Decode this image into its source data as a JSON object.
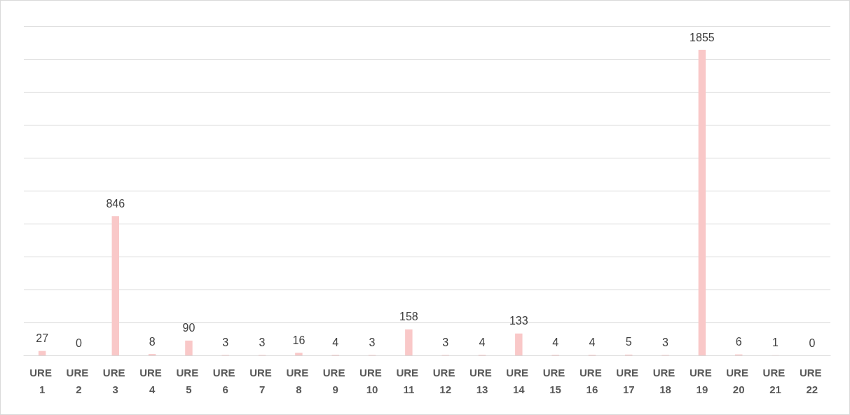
{
  "chart_data": {
    "type": "bar",
    "categories": [
      "URE 1",
      "URE 2",
      "URE 3",
      "URE 4",
      "URE 5",
      "URE 6",
      "URE 7",
      "URE 8",
      "URE 9",
      "URE 10",
      "URE 11",
      "URE 12",
      "URE 13",
      "URE 14",
      "URE 15",
      "URE 16",
      "URE 17",
      "URE 18",
      "URE 19",
      "URE 20",
      "URE 21",
      "URE 22"
    ],
    "values": [
      27,
      0,
      846,
      8,
      90,
      3,
      3,
      16,
      4,
      3,
      158,
      3,
      4,
      133,
      4,
      4,
      5,
      3,
      1855,
      6,
      1,
      0
    ],
    "color": "#f9c8c8",
    "ylim": [
      0,
      2000
    ],
    "yticks": [
      {
        "value": 0,
        "label": null
      },
      {
        "value": 200,
        "label": null
      },
      {
        "value": 400,
        "label": null
      },
      {
        "value": 600,
        "label": null
      },
      {
        "value": 800,
        "label": null
      },
      {
        "value": 1000,
        "label": null
      },
      {
        "value": 1200,
        "label": null
      },
      {
        "value": 1400,
        "label": null
      },
      {
        "value": 1600,
        "label": null
      },
      {
        "value": 1800,
        "label": null
      },
      {
        "value": 2000,
        "label": null
      }
    ],
    "grid": "y",
    "tick_labels": "x",
    "data_labels": true
  }
}
